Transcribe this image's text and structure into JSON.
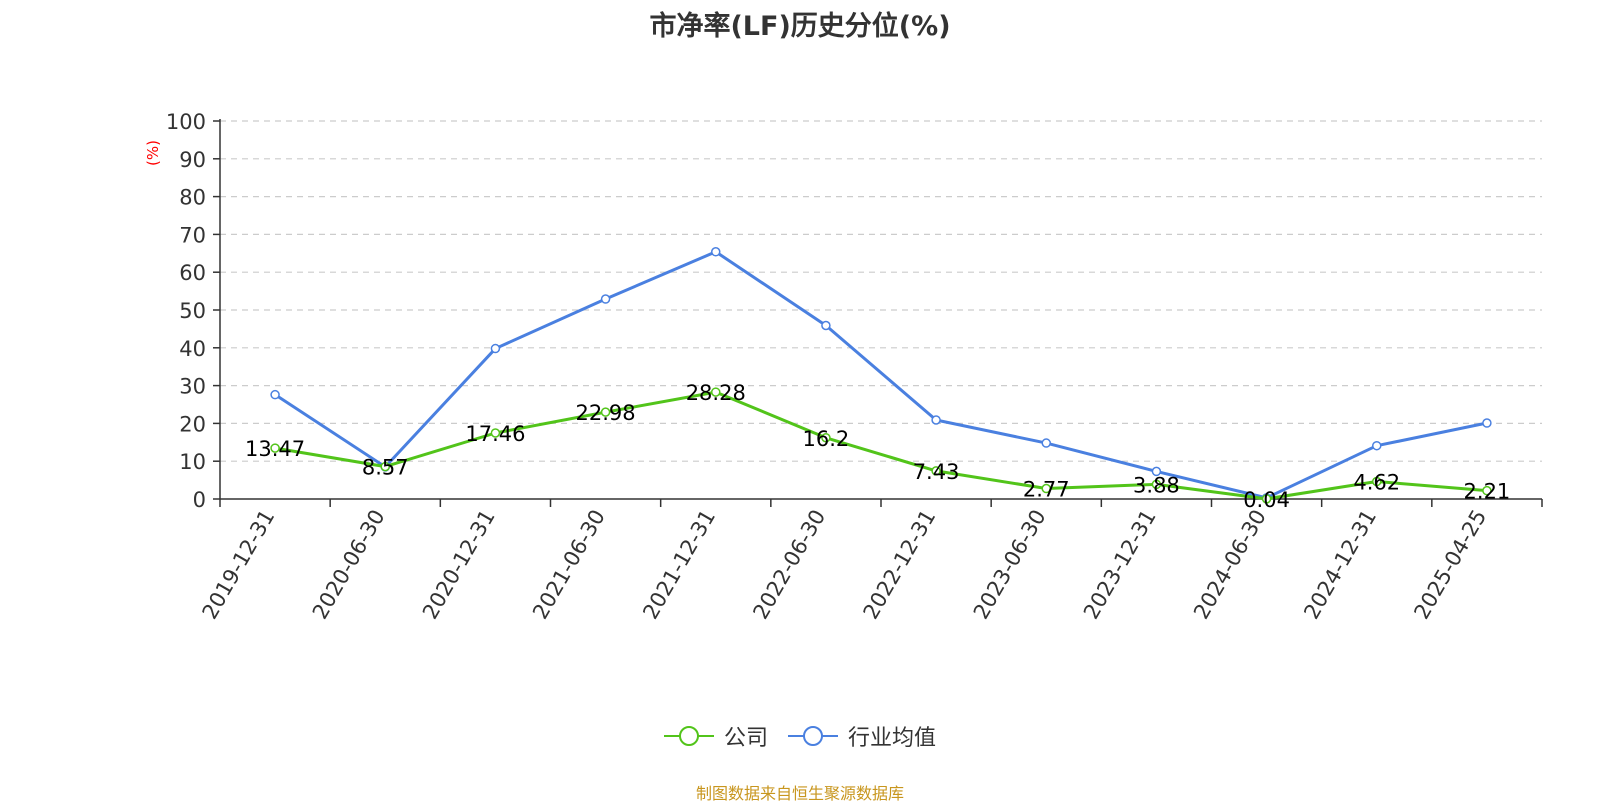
{
  "title": "市净率(LF)历史分位(%)",
  "source_note": "制图数据来自恒生聚源数据库",
  "legend": [
    {
      "label": "公司",
      "color": "#52c41a"
    },
    {
      "label": "行业均值",
      "color": "#4a80e0"
    }
  ],
  "chart_data": {
    "type": "line",
    "title": "市净率(LF)历史分位(%)",
    "ylabel": "(%)",
    "xlabel": "",
    "ylim": [
      0,
      100
    ],
    "yticks": [
      0,
      10,
      20,
      30,
      40,
      50,
      60,
      70,
      80,
      90,
      100
    ],
    "grid": true,
    "legend_position": "bottom",
    "categories": [
      "2019-12-31",
      "2020-06-30",
      "2020-12-31",
      "2021-06-30",
      "2021-12-31",
      "2022-06-30",
      "2022-12-31",
      "2023-06-30",
      "2023-12-31",
      "2024-06-30",
      "2024-12-31",
      "2025-04-25"
    ],
    "series": [
      {
        "name": "公司",
        "color": "#52c41a",
        "values": [
          13.47,
          8.57,
          17.46,
          22.98,
          28.28,
          16.2,
          7.43,
          2.77,
          3.88,
          0.04,
          4.62,
          2.21
        ],
        "labels": [
          "13.47",
          "8.57",
          "17.46",
          "22.98",
          "28.28",
          "16.2",
          "7.43",
          "2.77",
          "3.88",
          "0.04",
          "4.62",
          "2.21"
        ]
      },
      {
        "name": "行业均值",
        "color": "#4a80e0",
        "values": [
          27.6,
          8.5,
          39.8,
          52.9,
          65.4,
          45.9,
          20.9,
          14.8,
          7.3,
          0.3,
          14.1,
          20.1
        ]
      }
    ]
  }
}
